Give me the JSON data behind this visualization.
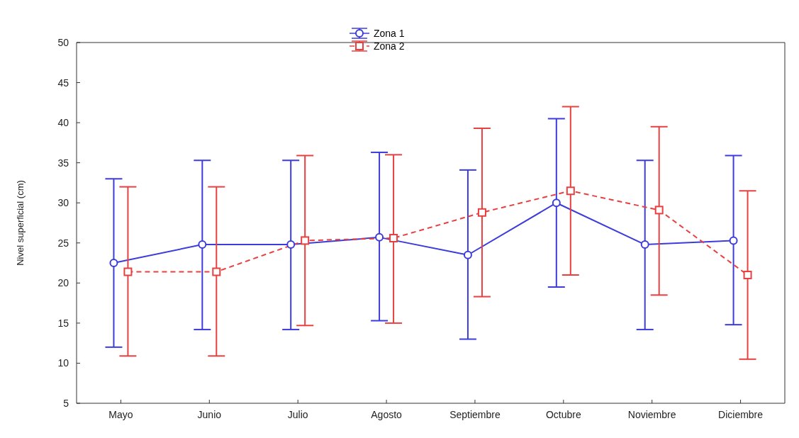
{
  "chart_data": {
    "type": "line",
    "ylabel": "Nivel superficial (cm)",
    "categories": [
      "Mayo",
      "Junio",
      "Julio",
      "Agosto",
      "Septiembre",
      "Octubre",
      "Noviembre",
      "Diciembre"
    ],
    "series": [
      {
        "name": "Zona 1",
        "color": "#3c3cdc",
        "marker": "circle",
        "line_style": "solid",
        "values": [
          22.5,
          24.8,
          24.8,
          25.7,
          23.5,
          30,
          24.8,
          25.3
        ],
        "errors": [
          [
            12,
            33
          ],
          [
            14.2,
            35.3
          ],
          [
            14.2,
            35.3
          ],
          [
            15.3,
            36.3
          ],
          [
            13,
            34.1
          ],
          [
            19.5,
            40.5
          ],
          [
            14.2,
            35.3
          ],
          [
            14.8,
            35.9
          ]
        ]
      },
      {
        "name": "Zona 2",
        "color": "#e84040",
        "marker": "square",
        "line_style": "dashed",
        "values": [
          21.4,
          21.4,
          25.3,
          25.6,
          28.8,
          31.5,
          29.1,
          21
        ],
        "errors": [
          [
            10.9,
            32
          ],
          [
            10.9,
            32
          ],
          [
            14.7,
            35.9
          ],
          [
            15,
            36
          ],
          [
            18.3,
            39.3
          ],
          [
            21,
            42
          ],
          [
            18.5,
            39.5
          ],
          [
            10.5,
            31.5
          ]
        ]
      }
    ],
    "ylim": [
      5,
      50
    ],
    "yticks": [
      5,
      10,
      15,
      20,
      25,
      30,
      35,
      40,
      45,
      50
    ],
    "grid": false,
    "legend": "top"
  }
}
